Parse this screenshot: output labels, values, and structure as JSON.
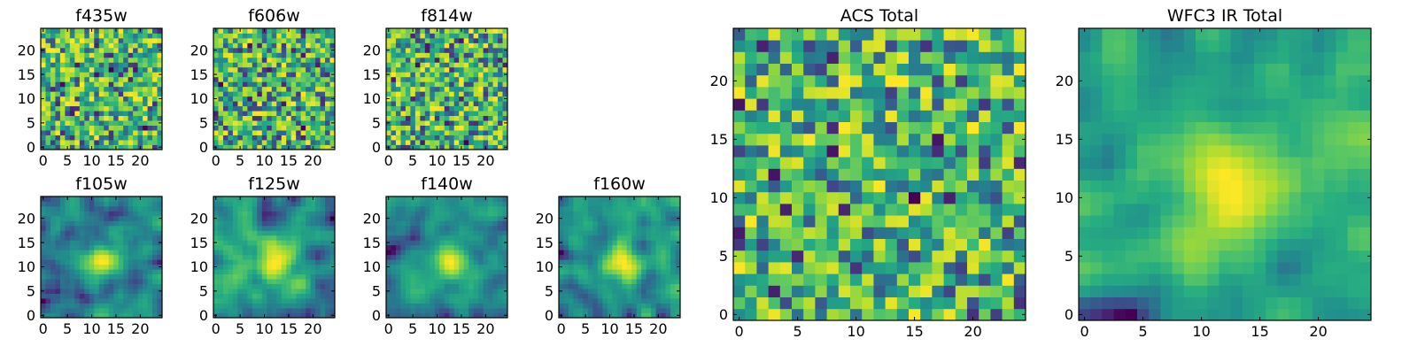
{
  "chart_data": {
    "type": "heatmap",
    "colormap": "viridis",
    "panels": [
      {
        "id": "f435w",
        "title": "f435w",
        "nx": 25,
        "ny": 25,
        "xticks": [
          0,
          5,
          10,
          15,
          20
        ],
        "yticks": [
          0,
          5,
          10,
          15,
          20
        ],
        "xlim": [
          -0.5,
          24.5
        ],
        "ylim": [
          -0.5,
          24.5
        ],
        "pattern": "noise",
        "seed": 11
      },
      {
        "id": "f606w",
        "title": "f606w",
        "nx": 25,
        "ny": 25,
        "xticks": [
          0,
          5,
          10,
          15,
          20
        ],
        "yticks": [
          0,
          5,
          10,
          15,
          20
        ],
        "xlim": [
          -0.5,
          24.5
        ],
        "ylim": [
          -0.5,
          24.5
        ],
        "pattern": "noise",
        "seed": 23
      },
      {
        "id": "f814w",
        "title": "f814w",
        "nx": 25,
        "ny": 25,
        "xticks": [
          0,
          5,
          10,
          15,
          20
        ],
        "yticks": [
          0,
          5,
          10,
          15,
          20
        ],
        "xlim": [
          -0.5,
          24.5
        ],
        "ylim": [
          -0.5,
          24.5
        ],
        "pattern": "noise",
        "seed": 37
      },
      {
        "id": "f105w",
        "title": "f105w",
        "nx": 25,
        "ny": 25,
        "xticks": [
          0,
          5,
          10,
          15,
          20
        ],
        "yticks": [
          0,
          5,
          10,
          15,
          20
        ],
        "xlim": [
          -0.5,
          24.5
        ],
        "ylim": [
          -0.5,
          24.5
        ],
        "pattern": "smooth",
        "seed": 41
      },
      {
        "id": "f125w",
        "title": "f125w",
        "nx": 25,
        "ny": 25,
        "xticks": [
          0,
          5,
          10,
          15,
          20
        ],
        "yticks": [
          0,
          5,
          10,
          15,
          20
        ],
        "xlim": [
          -0.5,
          24.5
        ],
        "ylim": [
          -0.5,
          24.5
        ],
        "pattern": "smooth",
        "seed": 53
      },
      {
        "id": "f140w",
        "title": "f140w",
        "nx": 25,
        "ny": 25,
        "xticks": [
          0,
          5,
          10,
          15,
          20
        ],
        "yticks": [
          0,
          5,
          10,
          15,
          20
        ],
        "xlim": [
          -0.5,
          24.5
        ],
        "ylim": [
          -0.5,
          24.5
        ],
        "pattern": "smooth",
        "seed": 67
      },
      {
        "id": "f160w",
        "title": "f160w",
        "nx": 25,
        "ny": 25,
        "xticks": [
          0,
          5,
          10,
          15,
          20
        ],
        "yticks": [
          0,
          5,
          10,
          15,
          20
        ],
        "xlim": [
          -0.5,
          24.5
        ],
        "ylim": [
          -0.5,
          24.5
        ],
        "pattern": "smooth",
        "seed": 79
      },
      {
        "id": "acs-total",
        "title": "ACS Total",
        "nx": 25,
        "ny": 25,
        "xticks": [
          0,
          5,
          10,
          15,
          20
        ],
        "yticks": [
          0,
          5,
          10,
          15,
          20
        ],
        "xlim": [
          -0.5,
          24.5
        ],
        "ylim": [
          -0.5,
          24.5
        ],
        "pattern": "noise",
        "seed": 89
      },
      {
        "id": "wfc3-ir-total",
        "title": "WFC3 IR Total",
        "nx": 25,
        "ny": 25,
        "xticks": [
          0,
          5,
          10,
          15,
          20
        ],
        "yticks": [
          0,
          5,
          10,
          15,
          20
        ],
        "xlim": [
          -0.5,
          24.5
        ],
        "ylim": [
          -0.5,
          24.5
        ],
        "pattern": "smooth",
        "seed": 97
      }
    ]
  }
}
